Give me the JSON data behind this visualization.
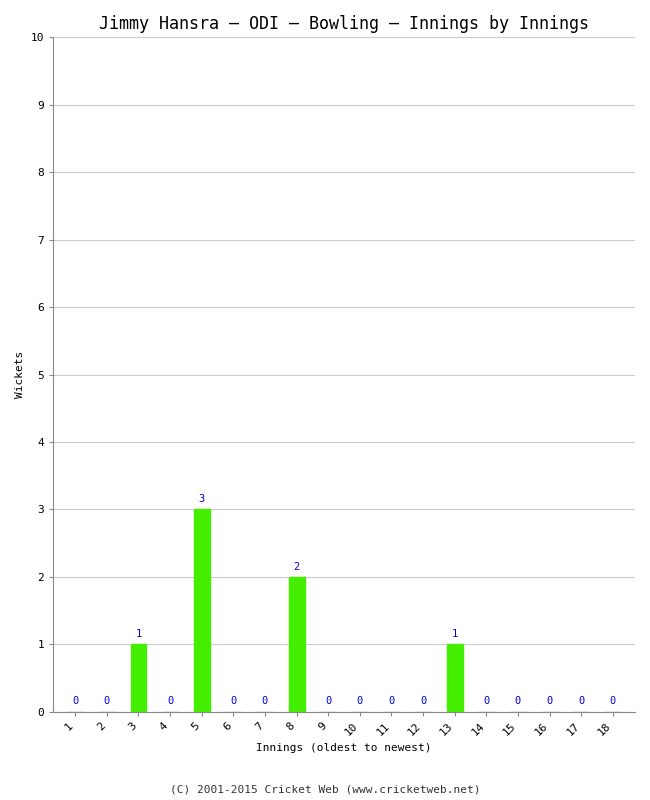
{
  "title": "Jimmy Hansra – ODI – Bowling – Innings by Innings",
  "xlabel": "Innings (oldest to newest)",
  "ylabel": "Wickets",
  "innings": [
    1,
    2,
    3,
    4,
    5,
    6,
    7,
    8,
    9,
    10,
    11,
    12,
    13,
    14,
    15,
    16,
    17,
    18
  ],
  "wickets": [
    0,
    0,
    1,
    0,
    3,
    0,
    0,
    2,
    0,
    0,
    0,
    0,
    1,
    0,
    0,
    0,
    0,
    0
  ],
  "bar_color": "#44ee00",
  "label_color": "#0000cc",
  "background_color": "#ffffff",
  "grid_color": "#cccccc",
  "spine_color": "#888888",
  "ylim": [
    0,
    10
  ],
  "yticks": [
    0,
    1,
    2,
    3,
    4,
    5,
    6,
    7,
    8,
    9,
    10
  ],
  "title_fontsize": 12,
  "axis_label_fontsize": 8,
  "tick_fontsize": 8,
  "bar_label_fontsize": 7.5,
  "footer": "(C) 2001-2015 Cricket Web (www.cricketweb.net)",
  "footer_fontsize": 8
}
